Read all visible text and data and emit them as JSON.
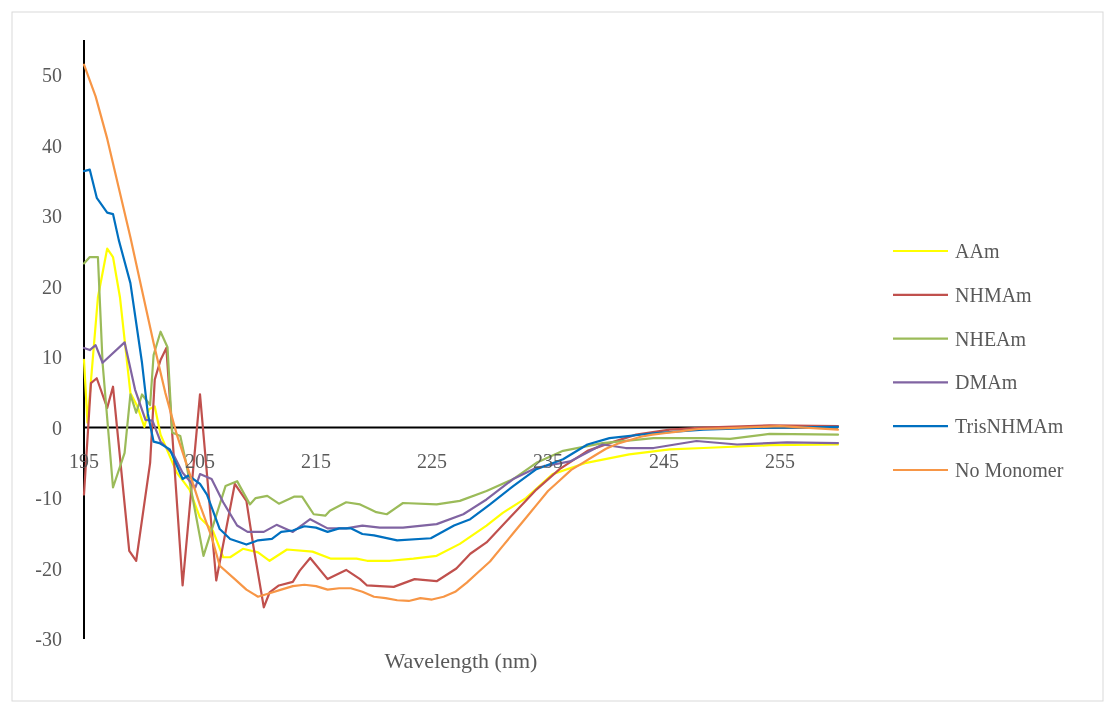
{
  "chart_data": {
    "type": "line",
    "xlabel": "Wavelength (nm)",
    "xlim": [
      195,
      260
    ],
    "xticks": [
      195,
      205,
      215,
      225,
      235,
      245,
      255
    ],
    "ylim": [
      -30,
      55
    ],
    "yticks": [
      -30,
      -20,
      -10,
      0,
      10,
      20,
      30,
      40,
      50
    ],
    "grid": false,
    "legend": "right",
    "marker": "none",
    "line_style": "solid",
    "series": [
      {
        "name": "AAm",
        "color": "#ffff00",
        "x": [
          195,
          195.3,
          196.2,
          197,
          197.5,
          198.1,
          199,
          199.6,
          200.2,
          200.6,
          201.1,
          201.6,
          203,
          204.1,
          205,
          206.1,
          207,
          207.6,
          208.7,
          210,
          211,
          212.5,
          214.7,
          216.3,
          218.5,
          219.4,
          220.5,
          221.4,
          223.4,
          225.4,
          227.4,
          229.7,
          231.1,
          233.1,
          235.4,
          238.3,
          242,
          245.5,
          248.4,
          254.1,
          260
        ],
        "values": [
          9.6,
          0.7,
          18.5,
          25.4,
          24.2,
          18.5,
          4.9,
          3,
          0.1,
          2.6,
          3,
          -1,
          -6.4,
          -8.8,
          -12.8,
          -14.6,
          -18.4,
          -18.4,
          -17.2,
          -17.7,
          -18.9,
          -17.3,
          -17.6,
          -18.6,
          -18.6,
          -18.9,
          -18.9,
          -18.9,
          -18.6,
          -18.2,
          -16.5,
          -13.9,
          -12.1,
          -10,
          -6.6,
          -5,
          -3.8,
          -3.1,
          -2.9,
          -2.5,
          -2.4
        ]
      },
      {
        "name": "NHMAm",
        "color": "#c0504d",
        "x": [
          195,
          195.6,
          196.1,
          197,
          197.5,
          198.9,
          199.5,
          200.7,
          201.1,
          201.6,
          202.1,
          203.5,
          205,
          206.4,
          208,
          209,
          209.6,
          210.5,
          211,
          211.8,
          213,
          213.6,
          214.5,
          216,
          217.6,
          218.8,
          219.4,
          220.5,
          221.7,
          223.5,
          225.4,
          227.1,
          228.3,
          229.7,
          231.7,
          234,
          236,
          238.4,
          240.3,
          242.6,
          245.5,
          248.4,
          254.1,
          260
        ],
        "values": [
          -9.5,
          6.3,
          7,
          2.8,
          5.8,
          -17.5,
          -18.9,
          -5,
          6.8,
          9.6,
          11.3,
          -22.4,
          4.7,
          -21.7,
          -8,
          -10.4,
          -16.8,
          -25.5,
          -23.4,
          -22.4,
          -21.9,
          -20.3,
          -18.5,
          -21.5,
          -20.2,
          -21.5,
          -22.4,
          -22.5,
          -22.6,
          -21.5,
          -21.8,
          -20,
          -17.9,
          -16.3,
          -12.8,
          -8.8,
          -5.9,
          -3.3,
          -2.2,
          -1,
          -0.3,
          0,
          0.3,
          0.2
        ]
      },
      {
        "name": "NHEAm",
        "color": "#9bbb59",
        "x": [
          195,
          195.5,
          196.2,
          196.6,
          197.5,
          198.5,
          199,
          199.5,
          200,
          200.7,
          201,
          201.6,
          202.2,
          202.6,
          203.3,
          203.8,
          205.3,
          207.2,
          208.2,
          209.3,
          209.8,
          210.8,
          211.8,
          213.1,
          213.8,
          214.8,
          215.8,
          216.2,
          217.6,
          218.8,
          220.2,
          221.1,
          222.5,
          225.4,
          227.4,
          229.7,
          232,
          234,
          236.3,
          239.7,
          244.1,
          248.4,
          250.7,
          254.1,
          260
        ],
        "values": [
          23.3,
          24.2,
          24.2,
          9.2,
          -8.5,
          -3.6,
          4.7,
          2.1,
          4.7,
          3.2,
          10.3,
          13.6,
          11.4,
          -0.7,
          -1.2,
          -5,
          -18.2,
          -8.3,
          -7.6,
          -10.9,
          -10,
          -9.7,
          -10.8,
          -9.8,
          -9.8,
          -12.3,
          -12.5,
          -11.8,
          -10.6,
          -10.9,
          -12,
          -12.3,
          -10.7,
          -10.9,
          -10.4,
          -9,
          -7.3,
          -5,
          -3.3,
          -2.2,
          -1.5,
          -1.5,
          -1.6,
          -0.9,
          -1
        ]
      },
      {
        "name": "DMAm",
        "color": "#8064a2",
        "x": [
          195,
          195.5,
          196,
          196.6,
          198.5,
          199.4,
          200.3,
          200.9,
          201.6,
          202.7,
          203.5,
          204.6,
          205,
          206,
          207,
          208.2,
          209.1,
          210.5,
          211.6,
          213,
          214.5,
          216,
          217.6,
          219,
          220.5,
          222.5,
          225.4,
          227.7,
          229.7,
          232,
          234,
          236.9,
          239.7,
          241.7,
          244.1,
          247.8,
          251.3,
          255.6,
          260
        ],
        "values": [
          11.3,
          11,
          11.7,
          9.2,
          12.1,
          5.4,
          1.1,
          1,
          -2,
          -3.8,
          -6.4,
          -8.5,
          -6.6,
          -7.3,
          -10.6,
          -13.9,
          -14.8,
          -14.8,
          -13.8,
          -14.8,
          -13,
          -14.3,
          -14.3,
          -13.9,
          -14.2,
          -14.2,
          -13.7,
          -12.3,
          -10.2,
          -7.3,
          -5.7,
          -4.8,
          -2.4,
          -2.9,
          -2.9,
          -1.9,
          -2.4,
          -2.1,
          -2.2
        ]
      },
      {
        "name": "TrisNHMAm",
        "color": "#0070c0",
        "x": [
          195,
          195.5,
          196.1,
          197,
          197.5,
          198,
          199,
          200,
          200.5,
          201,
          201.5,
          202.4,
          203.5,
          204,
          205,
          205.6,
          206.7,
          207.6,
          209,
          210,
          211.2,
          212,
          213,
          214,
          215,
          216,
          217,
          218,
          219,
          220,
          222,
          224.9,
          226.9,
          228.3,
          230,
          232,
          234,
          236.3,
          238.4,
          240.3,
          244.1,
          248.4,
          254.1,
          260
        ],
        "values": [
          36.4,
          36.6,
          32.6,
          30.5,
          30.3,
          26.6,
          20.5,
          9.2,
          2,
          -2,
          -2.2,
          -3.1,
          -7.3,
          -6.8,
          -8,
          -9.5,
          -14.4,
          -15.8,
          -16.6,
          -16,
          -15.8,
          -14.8,
          -14.6,
          -14,
          -14.2,
          -14.8,
          -14.3,
          -14.3,
          -15.1,
          -15.3,
          -16,
          -15.7,
          -13.9,
          -13,
          -10.9,
          -8.3,
          -5.9,
          -4.5,
          -2.4,
          -1.5,
          -0.8,
          -0.3,
          0,
          0.1
        ]
      },
      {
        "name": "No Monomer",
        "color": "#f79646",
        "x": [
          195,
          196,
          197,
          198,
          199,
          200,
          201,
          202,
          203,
          204,
          205,
          206,
          206.7,
          208,
          209,
          210,
          211,
          212,
          213,
          214,
          215,
          216,
          217,
          218,
          219,
          220,
          221,
          222,
          223,
          224,
          225,
          226,
          227,
          228,
          229,
          230,
          231,
          232,
          233,
          234,
          235,
          236,
          237,
          238,
          239,
          240,
          241,
          242,
          243,
          244,
          245,
          246,
          247,
          248,
          250,
          255,
          260
        ],
        "values": [
          51.5,
          47,
          41,
          34,
          27,
          19.5,
          12,
          5,
          -1,
          -6,
          -11,
          -15.5,
          -19.6,
          -21.5,
          -23,
          -24,
          -23.5,
          -23,
          -22.5,
          -22.3,
          -22.5,
          -23,
          -22.8,
          -22.8,
          -23.3,
          -24,
          -24.2,
          -24.5,
          -24.6,
          -24.2,
          -24.4,
          -24,
          -23.3,
          -22,
          -20.5,
          -19,
          -17,
          -15,
          -13,
          -11,
          -9,
          -7.5,
          -6,
          -5,
          -4,
          -3,
          -2.3,
          -1.8,
          -1.3,
          -1,
          -0.8,
          -0.6,
          -0.4,
          -0.2,
          -0.1,
          0.2,
          -0.3
        ]
      }
    ]
  }
}
